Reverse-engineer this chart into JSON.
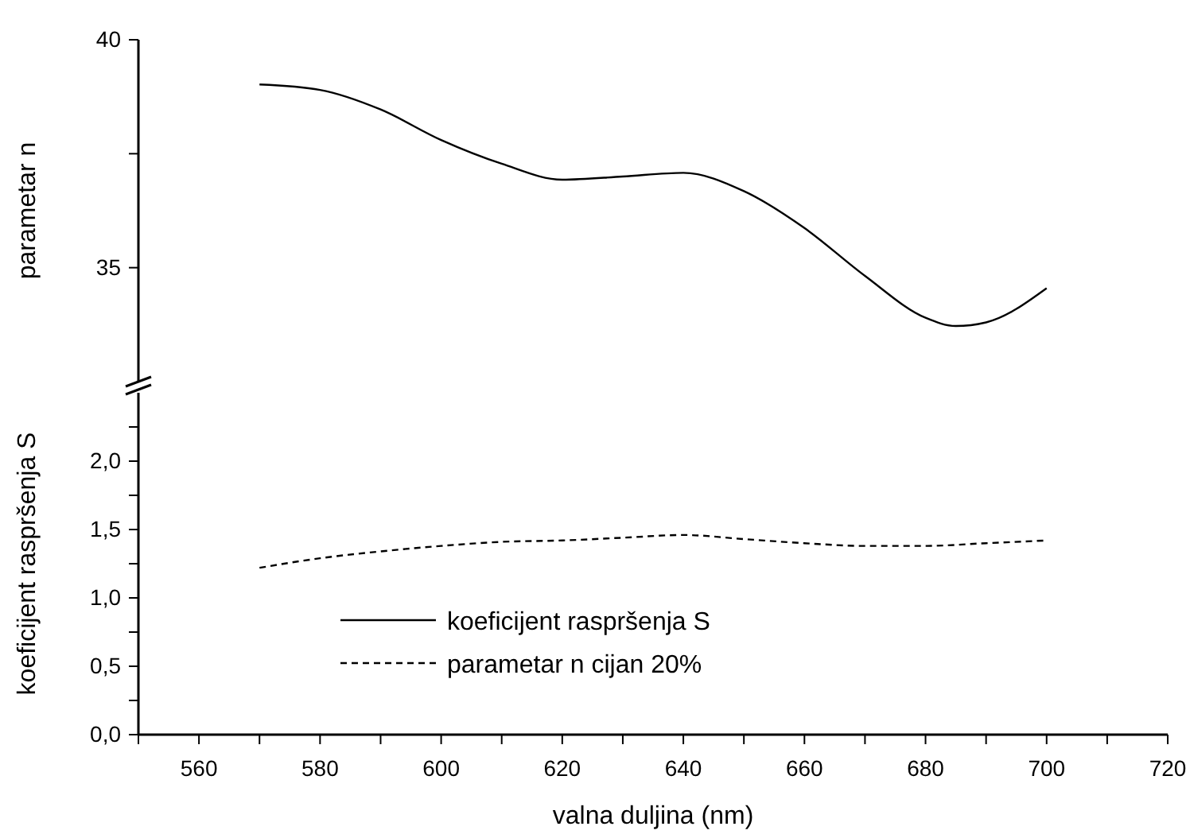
{
  "chart_data": [
    {
      "type": "line",
      "ylabel": "parametar n",
      "x": [
        570,
        580,
        590,
        600,
        610,
        620,
        630,
        640,
        650,
        660,
        670,
        680,
        685,
        690,
        700
      ],
      "xlim": [
        550,
        720
      ],
      "ylim": [
        32.5,
        40
      ],
      "yticks": [
        35,
        {
          "value": 37.5,
          "label": null
        },
        40
      ],
      "tick_labels": "y",
      "marker": "none",
      "series": [
        {
          "name": "koeficijent raspršenja S",
          "color": "#000000",
          "line_style": "solid",
          "values": [
            39.02,
            38.9,
            38.47,
            37.8,
            37.28,
            36.93,
            37.0,
            37.08,
            36.68,
            35.87,
            34.82,
            33.9,
            33.72,
            33.8,
            34.55
          ]
        }
      ]
    },
    {
      "type": "line",
      "xlabel": "valna duljina (nm)",
      "ylabel": "koeficijent raspršenja S",
      "x": [
        570,
        580,
        590,
        600,
        610,
        620,
        630,
        640,
        650,
        660,
        670,
        680,
        690,
        700
      ],
      "xlim": [
        550,
        720
      ],
      "xticks": [
        {
          "value": 550,
          "label": null
        },
        560,
        {
          "value": 570,
          "label": null
        },
        580,
        {
          "value": 590,
          "label": null
        },
        600,
        {
          "value": 610,
          "label": null
        },
        620,
        {
          "value": 630,
          "label": null
        },
        640,
        {
          "value": 650,
          "label": null
        },
        660,
        {
          "value": 670,
          "label": null
        },
        680,
        {
          "value": 690,
          "label": null
        },
        700,
        {
          "value": 710,
          "label": null
        },
        720
      ],
      "ylim": [
        0,
        2.5
      ],
      "yticks": [
        {
          "value": 0,
          "label": "0,0"
        },
        {
          "value": 0.25,
          "label": null
        },
        {
          "value": 0.5,
          "label": "0,5"
        },
        {
          "value": 0.75,
          "label": null
        },
        {
          "value": 1,
          "label": "1,0"
        },
        {
          "value": 1.25,
          "label": null
        },
        {
          "value": 1.5,
          "label": "1,5"
        },
        {
          "value": 1.75,
          "label": null
        },
        {
          "value": 2,
          "label": "2,0"
        },
        {
          "value": 2.25,
          "label": null
        }
      ],
      "legend": "bottom left",
      "marker": "none",
      "series": [
        {
          "name": "parametar n cijan 20%",
          "color": "#000000",
          "line_style": "dashed",
          "values": [
            1.22,
            1.29,
            1.34,
            1.38,
            1.41,
            1.42,
            1.44,
            1.46,
            1.43,
            1.4,
            1.38,
            1.38,
            1.4,
            1.42
          ]
        }
      ]
    }
  ]
}
